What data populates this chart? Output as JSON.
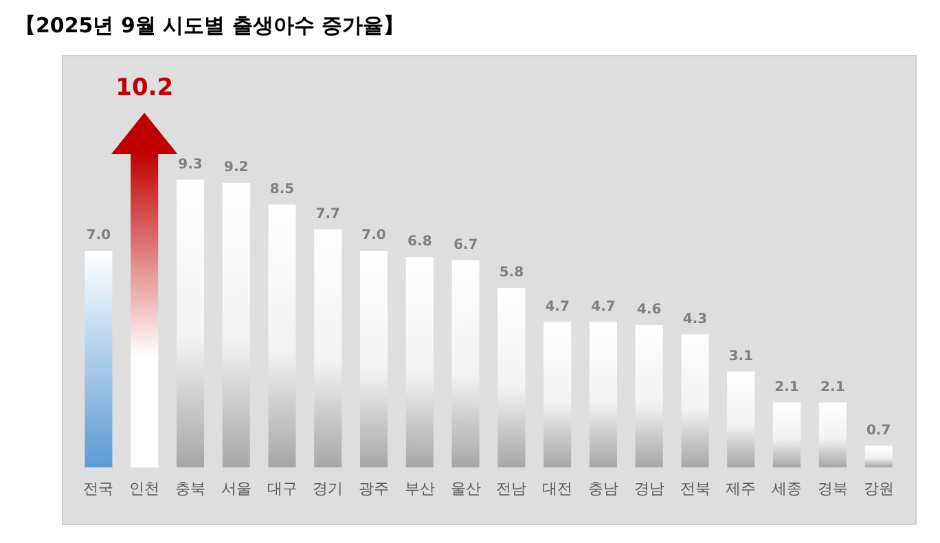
{
  "chart_data": {
    "type": "bar",
    "title": "【2025년 9월 시도별 출생아수 증가율】",
    "categories": [
      "전국",
      "인천",
      "충북",
      "서울",
      "대구",
      "경기",
      "광주",
      "부산",
      "울산",
      "전남",
      "대전",
      "충남",
      "경남",
      "전북",
      "제주",
      "세종",
      "경북",
      "강원"
    ],
    "values": [
      7.0,
      10.2,
      9.3,
      9.2,
      8.5,
      7.7,
      7.0,
      6.8,
      6.7,
      5.8,
      4.7,
      4.7,
      4.6,
      4.3,
      3.1,
      2.1,
      2.1,
      0.7
    ],
    "colors": [
      "#5b9bd5",
      "#c00000",
      "#a6a6a6",
      "#a6a6a6",
      "#a6a6a6",
      "#a6a6a6",
      "#a6a6a6",
      "#a6a6a6",
      "#a6a6a6",
      "#a6a6a6",
      "#a6a6a6",
      "#a6a6a6",
      "#a6a6a6",
      "#a6a6a6",
      "#a6a6a6",
      "#a6a6a6",
      "#a6a6a6",
      "#a6a6a6"
    ],
    "value_labels": [
      "7.0",
      "10.2",
      "9.3",
      "9.2",
      "8.5",
      "7.7",
      "7.0",
      "6.8",
      "6.7",
      "5.8",
      "4.7",
      "4.7",
      "4.6",
      "4.3",
      "3.1",
      "2.1",
      "2.1",
      "0.7"
    ]
  }
}
